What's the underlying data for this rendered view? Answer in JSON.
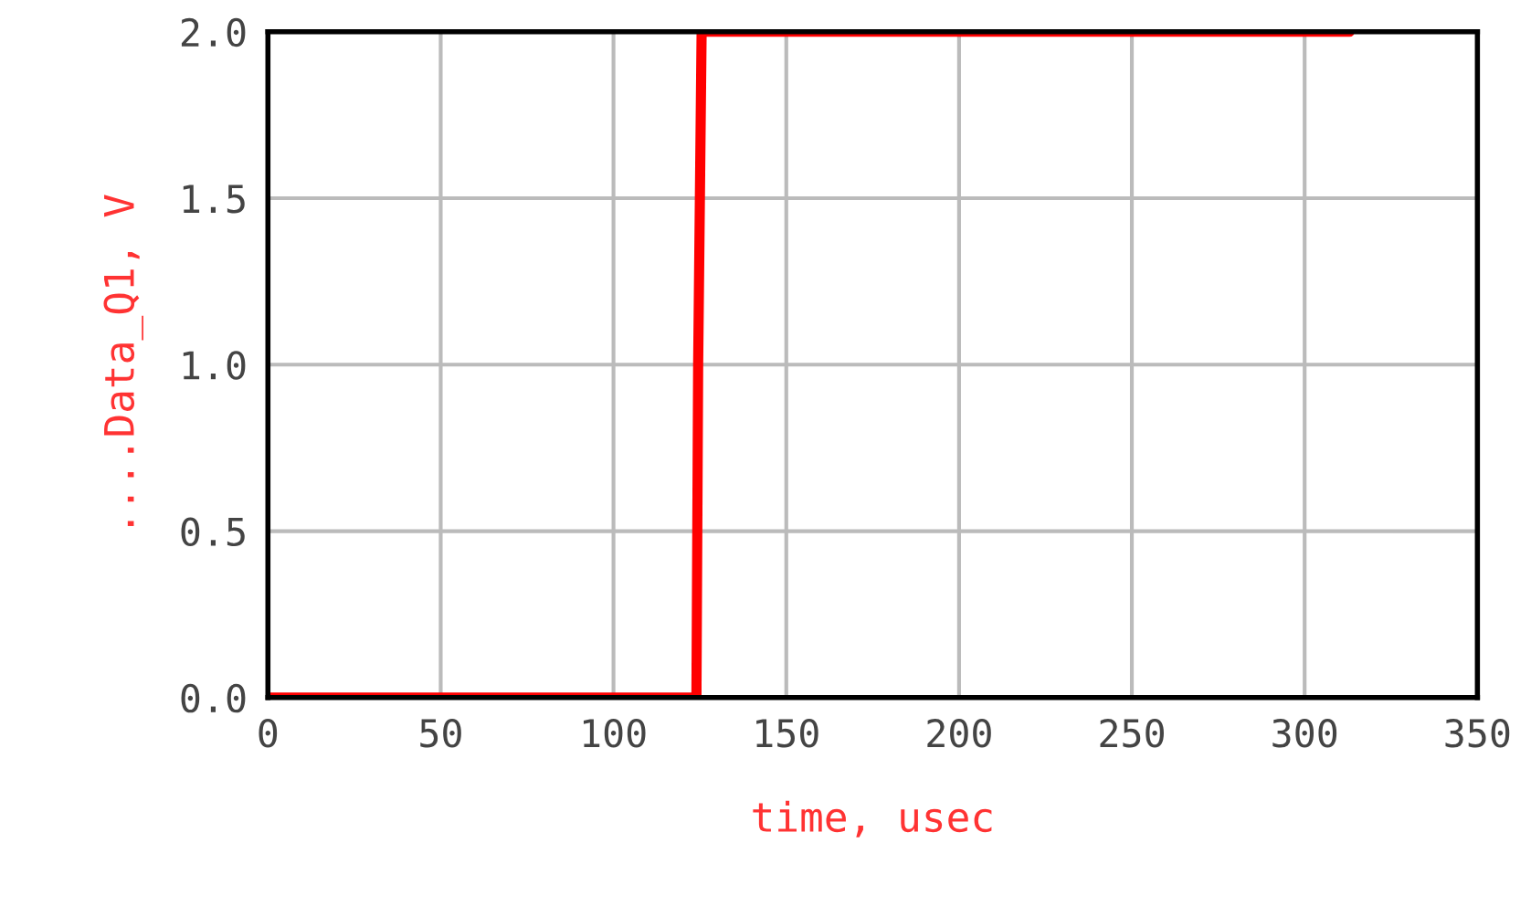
{
  "chart_data": {
    "type": "line",
    "xlabel": "time, usec",
    "ylabel": "....Data_Q1, V",
    "x": [
      0,
      124,
      124.5,
      125.5,
      313
    ],
    "series": [
      {
        "color": "#ff0000",
        "values": [
          0,
          0,
          1,
          2,
          2
        ]
      }
    ],
    "xlim": [
      0,
      350
    ],
    "xticks": [
      0,
      50,
      100,
      150,
      200,
      250,
      300,
      350
    ],
    "ylim": [
      0,
      2
    ],
    "yticks": [
      {
        "value": 0,
        "label": "0.0"
      },
      {
        "value": 0.5,
        "label": "0.5"
      },
      {
        "value": 1,
        "label": "1.0"
      },
      {
        "value": 1.5,
        "label": "1.5"
      },
      {
        "value": 2,
        "label": "2.0"
      }
    ],
    "grid": true,
    "legend": false,
    "marker": "none",
    "line_style": "solid"
  }
}
